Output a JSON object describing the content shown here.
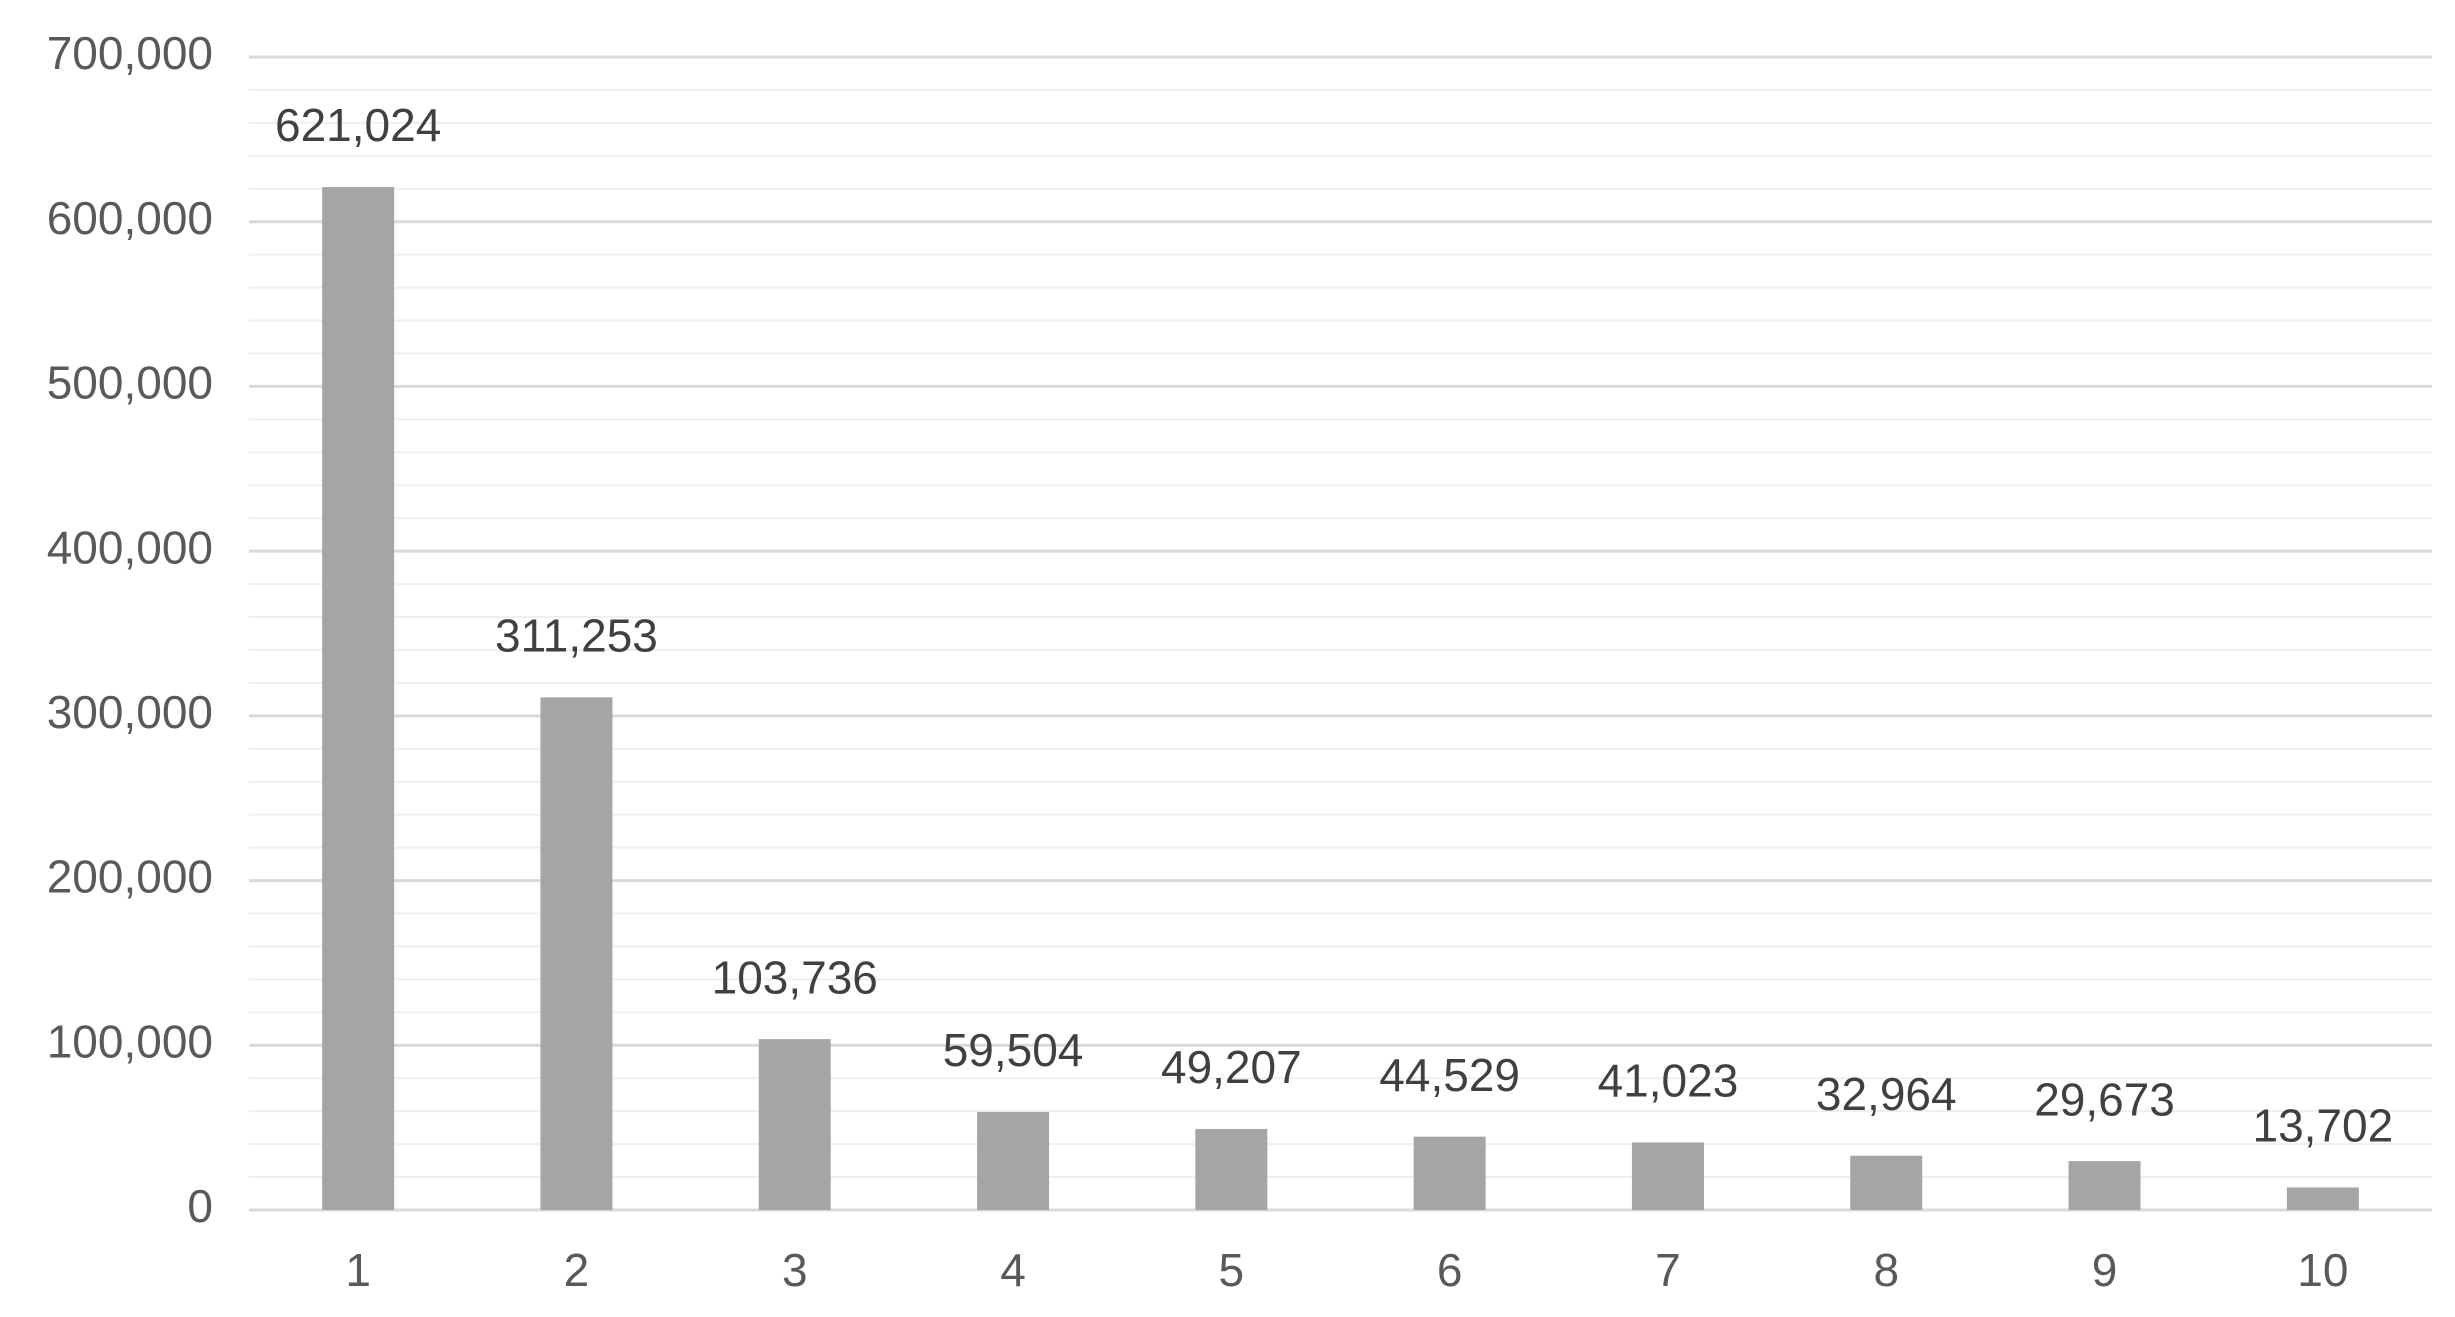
{
  "chart_data": {
    "type": "bar",
    "categories": [
      "1",
      "2",
      "3",
      "4",
      "5",
      "6",
      "7",
      "8",
      "9",
      "10"
    ],
    "values": [
      621024,
      311253,
      103736,
      59504,
      49207,
      44529,
      41023,
      32964,
      29673,
      13702
    ],
    "value_labels": [
      "621,024",
      "311,253",
      "103,736",
      "59,504",
      "49,207",
      "44,529",
      "41,023",
      "32,964",
      "29,673",
      "13,702"
    ],
    "color": "#a5a5a5",
    "ylim": [
      0,
      700000
    ],
    "yticks": [
      0,
      {
        "value": 100000,
        "label": "100,000"
      },
      {
        "value": 200000,
        "label": "200,000"
      },
      {
        "value": 300000,
        "label": "300,000"
      },
      {
        "value": 400000,
        "label": "400,000"
      },
      {
        "value": 500000,
        "label": "500,000"
      },
      {
        "value": 600000,
        "label": "600,000"
      },
      {
        "value": 700000,
        "label": "700,000"
      }
    ],
    "minor_yticks": [
      20000,
      40000,
      60000,
      80000,
      120000,
      140000,
      160000,
      180000,
      220000,
      240000,
      260000,
      280000,
      320000,
      340000,
      360000,
      380000,
      420000,
      440000,
      460000,
      480000,
      520000,
      540000,
      560000,
      580000,
      620000,
      640000,
      660000,
      680000
    ],
    "grid": true
  }
}
